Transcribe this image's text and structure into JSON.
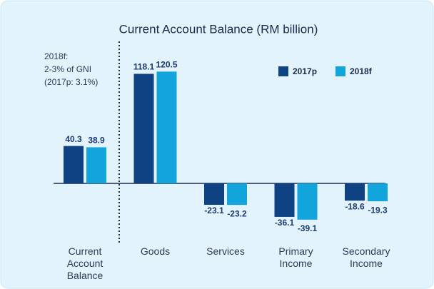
{
  "chart_data": {
    "type": "bar",
    "title": "Current Account Balance (RM billion)",
    "annotation": [
      "2018f:",
      "2-3% of GNI",
      "(2017p: 3.1%)"
    ],
    "categories": [
      "Current Account Balance",
      "Goods",
      "Services",
      "Primary Income",
      "Secondary Income"
    ],
    "series": [
      {
        "name": "2017p",
        "color": "#0f4282",
        "values": [
          40.3,
          118.1,
          -23.1,
          -36.1,
          -18.6
        ]
      },
      {
        "name": "2018f",
        "color": "#12a5dc",
        "values": [
          38.9,
          120.5,
          -23.2,
          -39.1,
          -19.3
        ]
      }
    ],
    "legend": "upper right"
  }
}
